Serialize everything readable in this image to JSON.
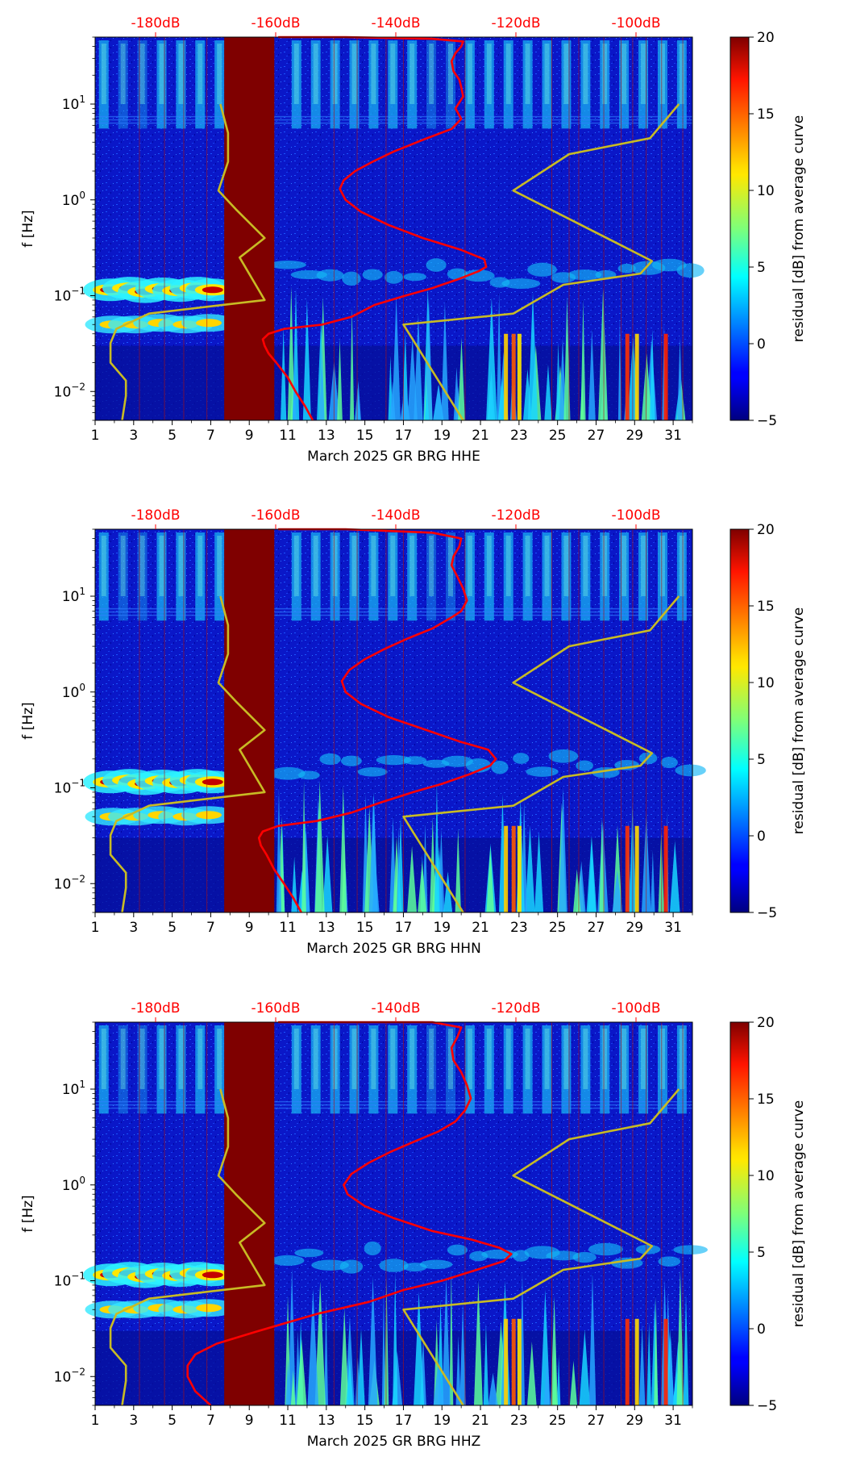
{
  "chart_data": [
    {
      "type": "heatmap",
      "channel": "HHE",
      "xlabel": "March 2025 GR BRG  HHE",
      "ylabel": "f [Hz]",
      "x_ticks": [
        "1",
        "3",
        "5",
        "7",
        "9",
        "11",
        "13",
        "15",
        "17",
        "19",
        "21",
        "23",
        "25",
        "27",
        "29",
        "31"
      ],
      "x_range": [
        1,
        32
      ],
      "y_range": [
        0.005,
        50
      ],
      "y_scale": "log",
      "y_ticks": [
        {
          "value": 10,
          "label": "10^1"
        },
        {
          "value": 1,
          "label": "10^0"
        },
        {
          "value": 0.1,
          "label": "10^-1"
        },
        {
          "value": 0.01,
          "label": "10^-2"
        }
      ],
      "top_ticks": [
        "-180dB",
        "-160dB",
        "-140dB",
        "-120dB",
        "-100dB"
      ],
      "top_ticks_color": "#ff0000",
      "saturated_days": [
        7.7,
        10.3
      ],
      "colorbar": {
        "label": "residual [dB] from average curve",
        "ticks": [
          "20",
          "15",
          "10",
          "5",
          "0",
          "−5"
        ],
        "min": -5,
        "max": 20
      },
      "series": [
        {
          "name": "yellow reference (left)",
          "color": "#c8bb24",
          "x": [
            7.5,
            7.9,
            7.9,
            7.4,
            8.3,
            9.8,
            8.5,
            9.8,
            3.8,
            2.1,
            1.8,
            1.8,
            2.6,
            2.6,
            2.4
          ],
          "y": [
            10,
            5,
            2.5,
            1.25,
            0.8,
            0.4,
            0.25,
            0.09,
            0.065,
            0.045,
            0.032,
            0.02,
            0.013,
            0.009,
            0.005
          ]
        },
        {
          "name": "yellow reference (right)",
          "color": "#c8bb24",
          "x": [
            31.3,
            29.8,
            25.6,
            22.7,
            29.9,
            29.3,
            25.3,
            22.7,
            17.0,
            20.1
          ],
          "y": [
            10,
            4.4,
            3,
            1.25,
            0.23,
            0.17,
            0.13,
            0.065,
            0.05,
            0.005
          ]
        },
        {
          "name": "average PSD curve",
          "color": "#ff0000",
          "x": [
            12.3,
            11.9,
            11.4,
            11.0,
            10.4,
            10.0,
            9.8,
            9.7,
            10.0,
            10.8,
            12.8,
            14.3,
            15.5,
            17.1,
            18.5,
            19.9,
            20.9,
            21.3,
            21.2,
            20.0,
            18.0,
            16.2,
            14.8,
            14.0,
            13.7,
            13.9,
            14.5,
            15.4,
            16.5,
            18.1,
            19.5,
            20.0,
            19.7,
            20.1,
            20.0,
            19.9,
            19.6,
            19.5,
            19.7,
            20.0,
            20.1,
            18.5,
            14.0,
            10.5
          ],
          "y": [
            0.005,
            0.007,
            0.01,
            0.014,
            0.02,
            0.025,
            0.03,
            0.035,
            0.04,
            0.045,
            0.05,
            0.06,
            0.08,
            0.1,
            0.12,
            0.15,
            0.18,
            0.2,
            0.24,
            0.3,
            0.4,
            0.55,
            0.75,
            1.0,
            1.3,
            1.6,
            2.0,
            2.5,
            3.2,
            4.3,
            5.5,
            7.0,
            9.0,
            12,
            15,
            18,
            22,
            28,
            34,
            40,
            45,
            48,
            50,
            50
          ]
        }
      ]
    },
    {
      "type": "heatmap",
      "channel": "HHN",
      "xlabel": "March 2025 GR BRG  HHN",
      "ylabel": "f [Hz]",
      "x_ticks": [
        "1",
        "3",
        "5",
        "7",
        "9",
        "11",
        "13",
        "15",
        "17",
        "19",
        "21",
        "23",
        "25",
        "27",
        "29",
        "31"
      ],
      "x_range": [
        1,
        32
      ],
      "y_range": [
        0.005,
        50
      ],
      "y_scale": "log",
      "y_ticks": [
        {
          "value": 10,
          "label": "10^1"
        },
        {
          "value": 1,
          "label": "10^0"
        },
        {
          "value": 0.1,
          "label": "10^-1"
        },
        {
          "value": 0.01,
          "label": "10^-2"
        }
      ],
      "top_ticks": [
        "-180dB",
        "-160dB",
        "-140dB",
        "-120dB",
        "-100dB"
      ],
      "top_ticks_color": "#ff0000",
      "saturated_days": [
        7.7,
        10.3
      ],
      "colorbar": {
        "label": "residual [dB] from average curve",
        "ticks": [
          "20",
          "15",
          "10",
          "5",
          "0",
          "−5"
        ],
        "min": -5,
        "max": 20
      },
      "series": [
        {
          "name": "yellow reference (left)",
          "color": "#c8bb24",
          "x": [
            7.5,
            7.9,
            7.9,
            7.4,
            8.3,
            9.8,
            8.5,
            9.8,
            3.8,
            2.1,
            1.8,
            1.8,
            2.6,
            2.6,
            2.4
          ],
          "y": [
            10,
            5,
            2.5,
            1.25,
            0.8,
            0.4,
            0.25,
            0.09,
            0.065,
            0.045,
            0.032,
            0.02,
            0.013,
            0.009,
            0.005
          ]
        },
        {
          "name": "yellow reference (right)",
          "color": "#c8bb24",
          "x": [
            31.3,
            29.8,
            25.6,
            22.7,
            29.9,
            29.3,
            25.3,
            22.7,
            17.0,
            20.1
          ],
          "y": [
            10,
            4.4,
            3,
            1.25,
            0.23,
            0.17,
            0.13,
            0.065,
            0.05,
            0.005
          ]
        },
        {
          "name": "average PSD curve",
          "color": "#ff0000",
          "x": [
            11.7,
            11.3,
            10.8,
            10.3,
            9.9,
            9.6,
            9.5,
            9.7,
            10.5,
            12.5,
            14.3,
            15.8,
            17.5,
            19.0,
            20.5,
            21.5,
            21.8,
            21.4,
            20.0,
            18.2,
            16.2,
            14.8,
            14.0,
            13.8,
            14.2,
            15.0,
            16.0,
            17.2,
            18.5,
            19.5,
            20.0,
            20.3,
            20.1,
            19.8,
            19.5,
            19.6,
            19.9,
            20.0,
            18.5,
            14.0,
            10.5
          ],
          "y": [
            0.005,
            0.007,
            0.01,
            0.014,
            0.02,
            0.025,
            0.03,
            0.035,
            0.04,
            0.045,
            0.055,
            0.07,
            0.09,
            0.11,
            0.14,
            0.17,
            0.2,
            0.25,
            0.3,
            0.4,
            0.55,
            0.75,
            1.0,
            1.3,
            1.7,
            2.2,
            2.8,
            3.6,
            4.6,
            6,
            7,
            9,
            12,
            16,
            21,
            26,
            33,
            40,
            46,
            50,
            50
          ]
        }
      ]
    },
    {
      "type": "heatmap",
      "channel": "HHZ",
      "xlabel": "March 2025 GR BRG  HHZ",
      "ylabel": "f [Hz]",
      "x_ticks": [
        "1",
        "3",
        "5",
        "7",
        "9",
        "11",
        "13",
        "15",
        "17",
        "19",
        "21",
        "23",
        "25",
        "27",
        "29",
        "31"
      ],
      "x_range": [
        1,
        32
      ],
      "y_range": [
        0.005,
        50
      ],
      "y_scale": "log",
      "y_ticks": [
        {
          "value": 10,
          "label": "10^1"
        },
        {
          "value": 1,
          "label": "10^0"
        },
        {
          "value": 0.1,
          "label": "10^-1"
        },
        {
          "value": 0.01,
          "label": "10^-2"
        }
      ],
      "top_ticks": [
        "-180dB",
        "-160dB",
        "-140dB",
        "-120dB",
        "-100dB"
      ],
      "top_ticks_color": "#ff0000",
      "saturated_days": [
        7.7,
        10.3
      ],
      "colorbar": {
        "label": "residual [dB] from average curve",
        "ticks": [
          "20",
          "15",
          "10",
          "5",
          "0",
          "−5"
        ],
        "min": -5,
        "max": 20
      },
      "series": [
        {
          "name": "yellow reference (left)",
          "color": "#c8bb24",
          "x": [
            7.5,
            7.9,
            7.9,
            7.4,
            8.3,
            9.8,
            8.5,
            9.8,
            3.8,
            2.1,
            1.8,
            1.8,
            2.6,
            2.6,
            2.4
          ],
          "y": [
            10,
            5,
            2.5,
            1.25,
            0.8,
            0.4,
            0.25,
            0.09,
            0.065,
            0.045,
            0.032,
            0.02,
            0.013,
            0.009,
            0.005
          ]
        },
        {
          "name": "yellow reference (right)",
          "color": "#c8bb24",
          "x": [
            31.3,
            29.8,
            25.6,
            22.7,
            29.9,
            29.3,
            25.3,
            22.7,
            17.0,
            20.1
          ],
          "y": [
            10,
            4.4,
            3,
            1.25,
            0.23,
            0.17,
            0.13,
            0.065,
            0.05,
            0.005
          ]
        },
        {
          "name": "average PSD curve",
          "color": "#ff0000",
          "x": [
            7.0,
            6.2,
            5.8,
            5.8,
            6.2,
            7.3,
            9.5,
            12.5,
            15.2,
            17.0,
            19.0,
            20.8,
            22.2,
            22.6,
            22.0,
            20.5,
            18.5,
            16.5,
            15.0,
            14.1,
            13.9,
            14.3,
            15.2,
            16.3,
            17.5,
            18.8,
            19.7,
            20.2,
            20.5,
            20.3,
            20.0,
            19.6,
            19.5,
            19.8,
            20.0,
            18.5,
            14.0,
            10.5
          ],
          "y": [
            0.005,
            0.007,
            0.01,
            0.013,
            0.017,
            0.022,
            0.03,
            0.045,
            0.06,
            0.08,
            0.1,
            0.13,
            0.16,
            0.19,
            0.22,
            0.27,
            0.33,
            0.45,
            0.6,
            0.8,
            1.0,
            1.3,
            1.7,
            2.2,
            2.8,
            3.6,
            4.6,
            6,
            8,
            11,
            15,
            20,
            27,
            35,
            44,
            50,
            50,
            50
          ]
        }
      ]
    }
  ]
}
